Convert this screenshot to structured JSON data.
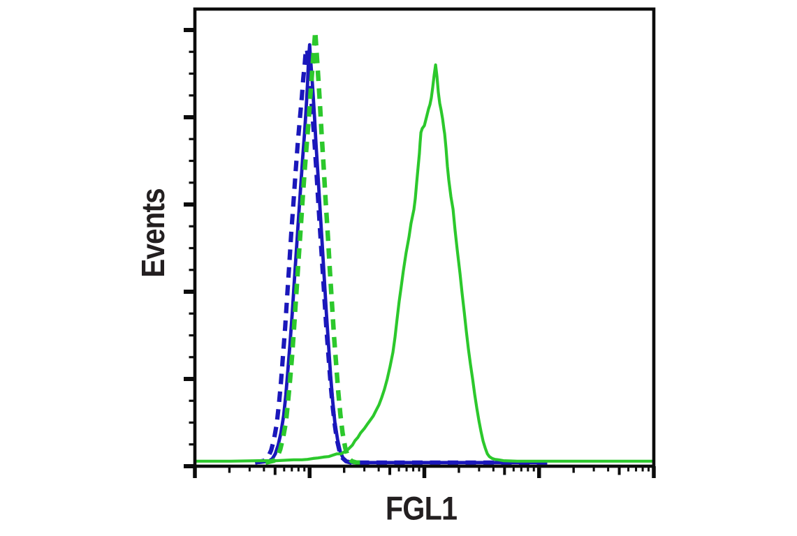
{
  "figure": {
    "background": "#ffffff",
    "axis_color": "#0c0c0c",
    "text_color": "#231f20"
  },
  "chart_data": {
    "type": "line",
    "subtype": "flow-cytometry-histogram-overlay",
    "title": "",
    "xlabel": "FGL1",
    "ylabel": "Events",
    "grid": false,
    "legend": "none",
    "x_axis": {
      "scale": "log",
      "decades": 4,
      "minor_ticks": [
        2,
        3,
        4,
        5,
        6,
        7,
        8,
        9
      ],
      "tick_labels_shown": false
    },
    "y_axis": {
      "scale": "linear",
      "range": [
        0,
        5.24
      ],
      "major_step": 1,
      "minor_step": 0.25,
      "tick_labels_shown": false
    },
    "series": [
      {
        "name": "blue-dashed-control",
        "color": "#1a17bb",
        "line_style": "dashed",
        "stroke_width": 6.2,
        "peak": {
          "x_log": 0.976,
          "y": 0.913
        },
        "points": [
          [
            0.524,
            0.008
          ],
          [
            0.604,
            0.012
          ],
          [
            0.64,
            0.021
          ],
          [
            0.665,
            0.035
          ],
          [
            0.689,
            0.058
          ],
          [
            0.713,
            0.092
          ],
          [
            0.732,
            0.134
          ],
          [
            0.75,
            0.183
          ],
          [
            0.768,
            0.241
          ],
          [
            0.787,
            0.305
          ],
          [
            0.805,
            0.374
          ],
          [
            0.823,
            0.443
          ],
          [
            0.841,
            0.513
          ],
          [
            0.86,
            0.58
          ],
          [
            0.878,
            0.644
          ],
          [
            0.896,
            0.705
          ],
          [
            0.915,
            0.76
          ],
          [
            0.933,
            0.809
          ],
          [
            0.945,
            0.849
          ],
          [
            0.957,
            0.879
          ],
          [
            0.963,
            0.898
          ],
          [
            0.97,
            0.908
          ],
          [
            0.976,
            0.913
          ],
          [
            0.982,
            0.902
          ],
          [
            0.994,
            0.872
          ],
          [
            1.006,
            0.834
          ],
          [
            1.018,
            0.791
          ],
          [
            1.037,
            0.73
          ],
          [
            1.055,
            0.661
          ],
          [
            1.073,
            0.589
          ],
          [
            1.091,
            0.516
          ],
          [
            1.11,
            0.443
          ],
          [
            1.128,
            0.371
          ],
          [
            1.146,
            0.302
          ],
          [
            1.165,
            0.238
          ],
          [
            1.183,
            0.18
          ],
          [
            1.201,
            0.13
          ],
          [
            1.22,
            0.089
          ],
          [
            1.238,
            0.058
          ],
          [
            1.262,
            0.032
          ],
          [
            1.287,
            0.018
          ],
          [
            1.317,
            0.011
          ],
          [
            1.36,
            0.008
          ],
          [
            1.53,
            0.008
          ],
          [
            1.957,
            0.008
          ],
          [
            2.445,
            0.008
          ],
          [
            2.933,
            0.008
          ],
          [
            3.116,
            0.008
          ]
        ]
      },
      {
        "name": "blue-solid",
        "color": "#1a17bb",
        "line_style": "solid",
        "stroke_width": 4.8,
        "peak": {
          "x_log": 1.0,
          "y": 0.922
        },
        "points": [
          [
            0.555,
            0.008
          ],
          [
            0.646,
            0.011
          ],
          [
            0.677,
            0.017
          ],
          [
            0.701,
            0.027
          ],
          [
            0.726,
            0.046
          ],
          [
            0.75,
            0.073
          ],
          [
            0.774,
            0.111
          ],
          [
            0.793,
            0.157
          ],
          [
            0.811,
            0.211
          ],
          [
            0.829,
            0.269
          ],
          [
            0.848,
            0.333
          ],
          [
            0.866,
            0.401
          ],
          [
            0.884,
            0.47
          ],
          [
            0.902,
            0.539
          ],
          [
            0.921,
            0.608
          ],
          [
            0.939,
            0.672
          ],
          [
            0.957,
            0.733
          ],
          [
            0.97,
            0.783
          ],
          [
            0.982,
            0.837
          ],
          [
            0.988,
            0.875
          ],
          [
            0.994,
            0.901
          ],
          [
            1.0,
            0.922
          ],
          [
            1.006,
            0.898
          ],
          [
            1.018,
            0.859
          ],
          [
            1.03,
            0.814
          ],
          [
            1.043,
            0.763
          ],
          [
            1.055,
            0.707
          ],
          [
            1.073,
            0.638
          ],
          [
            1.091,
            0.562
          ],
          [
            1.11,
            0.485
          ],
          [
            1.128,
            0.409
          ],
          [
            1.146,
            0.336
          ],
          [
            1.165,
            0.264
          ],
          [
            1.183,
            0.198
          ],
          [
            1.201,
            0.142
          ],
          [
            1.22,
            0.096
          ],
          [
            1.244,
            0.058
          ],
          [
            1.268,
            0.031
          ],
          [
            1.293,
            0.017
          ],
          [
            1.323,
            0.011
          ],
          [
            1.378,
            0.008
          ],
          [
            1.53,
            0.008
          ],
          [
            1.957,
            0.008
          ],
          [
            2.567,
            0.008
          ],
          [
            2.994,
            0.008
          ]
        ]
      },
      {
        "name": "green-dashed-control",
        "color": "#2cc82c",
        "line_style": "dashed",
        "stroke_width": 6.5,
        "peak": {
          "x_log": 1.049,
          "y": 0.951
        },
        "points": [
          [
            0.616,
            0.008
          ],
          [
            0.689,
            0.012
          ],
          [
            0.72,
            0.021
          ],
          [
            0.744,
            0.037
          ],
          [
            0.768,
            0.061
          ],
          [
            0.793,
            0.096
          ],
          [
            0.811,
            0.139
          ],
          [
            0.829,
            0.188
          ],
          [
            0.848,
            0.244
          ],
          [
            0.866,
            0.308
          ],
          [
            0.884,
            0.377
          ],
          [
            0.902,
            0.447
          ],
          [
            0.921,
            0.516
          ],
          [
            0.939,
            0.583
          ],
          [
            0.957,
            0.647
          ],
          [
            0.976,
            0.708
          ],
          [
            0.994,
            0.765
          ],
          [
            1.006,
            0.809
          ],
          [
            1.018,
            0.849
          ],
          [
            1.03,
            0.89
          ],
          [
            1.043,
            0.931
          ],
          [
            1.049,
            0.951
          ],
          [
            1.055,
            0.928
          ],
          [
            1.067,
            0.882
          ],
          [
            1.079,
            0.837
          ],
          [
            1.091,
            0.788
          ],
          [
            1.104,
            0.73
          ],
          [
            1.122,
            0.656
          ],
          [
            1.14,
            0.58
          ],
          [
            1.159,
            0.504
          ],
          [
            1.177,
            0.427
          ],
          [
            1.195,
            0.354
          ],
          [
            1.213,
            0.284
          ],
          [
            1.232,
            0.22
          ],
          [
            1.25,
            0.162
          ],
          [
            1.268,
            0.113
          ],
          [
            1.287,
            0.073
          ],
          [
            1.311,
            0.04
          ],
          [
            1.335,
            0.02
          ],
          [
            1.366,
            0.011
          ],
          [
            1.409,
            0.008
          ],
          [
            1.5,
            0.008
          ]
        ]
      },
      {
        "name": "green-solid",
        "color": "#2cc82c",
        "line_style": "solid",
        "stroke_width": 4.2,
        "peak": {
          "x_log": 2.098,
          "y": 0.878
        },
        "points": [
          [
            0.0,
            0.011
          ],
          [
            0.311,
            0.011
          ],
          [
            0.555,
            0.012
          ],
          [
            0.707,
            0.012
          ],
          [
            0.86,
            0.014
          ],
          [
            0.933,
            0.014
          ],
          [
            0.982,
            0.015
          ],
          [
            1.03,
            0.017
          ],
          [
            1.073,
            0.018
          ],
          [
            1.122,
            0.02
          ],
          [
            1.165,
            0.021
          ],
          [
            1.201,
            0.024
          ],
          [
            1.238,
            0.027
          ],
          [
            1.274,
            0.027
          ],
          [
            1.299,
            0.031
          ],
          [
            1.323,
            0.034
          ],
          [
            1.348,
            0.04
          ],
          [
            1.372,
            0.046
          ],
          [
            1.396,
            0.056
          ],
          [
            1.421,
            0.063
          ],
          [
            1.445,
            0.073
          ],
          [
            1.476,
            0.082
          ],
          [
            1.506,
            0.093
          ],
          [
            1.53,
            0.101
          ],
          [
            1.555,
            0.11
          ],
          [
            1.579,
            0.122
          ],
          [
            1.604,
            0.134
          ],
          [
            1.628,
            0.15
          ],
          [
            1.652,
            0.168
          ],
          [
            1.677,
            0.191
          ],
          [
            1.701,
            0.218
          ],
          [
            1.726,
            0.249
          ],
          [
            1.744,
            0.282
          ],
          [
            1.762,
            0.321
          ],
          [
            1.78,
            0.36
          ],
          [
            1.799,
            0.394
          ],
          [
            1.817,
            0.427
          ],
          [
            1.841,
            0.467
          ],
          [
            1.866,
            0.501
          ],
          [
            1.884,
            0.531
          ],
          [
            1.909,
            0.562
          ],
          [
            1.921,
            0.585
          ],
          [
            1.933,
            0.62
          ],
          [
            1.945,
            0.653
          ],
          [
            1.957,
            0.684
          ],
          [
            1.963,
            0.707
          ],
          [
            1.97,
            0.73
          ],
          [
            1.982,
            0.739
          ],
          [
            2.0,
            0.745
          ],
          [
            2.018,
            0.763
          ],
          [
            2.037,
            0.782
          ],
          [
            2.049,
            0.791
          ],
          [
            2.061,
            0.806
          ],
          [
            2.073,
            0.829
          ],
          [
            2.085,
            0.855
          ],
          [
            2.098,
            0.878
          ],
          [
            2.11,
            0.852
          ],
          [
            2.122,
            0.818
          ],
          [
            2.134,
            0.794
          ],
          [
            2.146,
            0.779
          ],
          [
            2.159,
            0.76
          ],
          [
            2.171,
            0.737
          ],
          [
            2.177,
            0.727
          ],
          [
            2.189,
            0.696
          ],
          [
            2.201,
            0.656
          ],
          [
            2.213,
            0.626
          ],
          [
            2.232,
            0.589
          ],
          [
            2.25,
            0.562
          ],
          [
            2.268,
            0.516
          ],
          [
            2.287,
            0.473
          ],
          [
            2.311,
            0.421
          ],
          [
            2.329,
            0.379
          ],
          [
            2.348,
            0.336
          ],
          [
            2.366,
            0.295
          ],
          [
            2.384,
            0.256
          ],
          [
            2.402,
            0.223
          ],
          [
            2.421,
            0.191
          ],
          [
            2.439,
            0.157
          ],
          [
            2.457,
            0.127
          ],
          [
            2.476,
            0.099
          ],
          [
            2.494,
            0.076
          ],
          [
            2.512,
            0.055
          ],
          [
            2.53,
            0.04
          ],
          [
            2.549,
            0.027
          ],
          [
            2.567,
            0.021
          ],
          [
            2.591,
            0.017
          ],
          [
            2.616,
            0.015
          ],
          [
            2.646,
            0.014
          ],
          [
            2.689,
            0.012
          ],
          [
            2.811,
            0.011
          ],
          [
            3.177,
            0.011
          ],
          [
            3.604,
            0.011
          ],
          [
            4.0,
            0.011
          ]
        ]
      }
    ]
  }
}
